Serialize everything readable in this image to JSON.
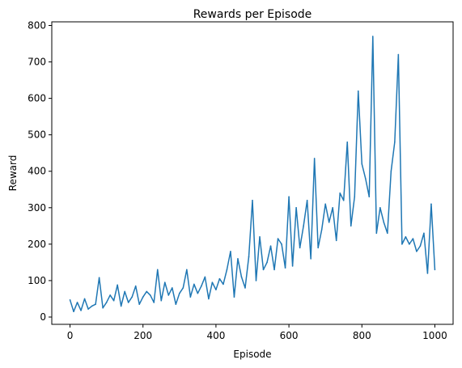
{
  "chart_data": {
    "type": "line",
    "title": "Rewards per Episode",
    "xlabel": "Episode",
    "ylabel": "Reward",
    "xlim": [
      -50,
      1050
    ],
    "ylim": [
      -20,
      810
    ],
    "xticks": [
      0,
      200,
      400,
      600,
      800,
      1000
    ],
    "yticks": [
      0,
      100,
      200,
      300,
      400,
      500,
      600,
      700,
      800
    ],
    "grid": false,
    "legend": "none",
    "series": [
      {
        "color": "#1f77b4",
        "x": [
          0,
          10,
          20,
          30,
          40,
          50,
          60,
          70,
          80,
          90,
          100,
          110,
          120,
          130,
          140,
          150,
          160,
          170,
          180,
          190,
          200,
          210,
          220,
          230,
          240,
          250,
          260,
          270,
          280,
          290,
          300,
          310,
          320,
          330,
          340,
          350,
          360,
          370,
          380,
          390,
          400,
          410,
          420,
          430,
          440,
          450,
          460,
          470,
          480,
          490,
          500,
          510,
          520,
          530,
          540,
          550,
          560,
          570,
          580,
          590,
          600,
          610,
          620,
          630,
          640,
          650,
          660,
          670,
          680,
          690,
          700,
          710,
          720,
          730,
          740,
          750,
          760,
          770,
          780,
          790,
          800,
          810,
          820,
          830,
          840,
          850,
          860,
          870,
          880,
          890,
          900,
          910,
          920,
          930,
          940,
          950,
          960,
          970,
          980,
          990,
          1000
        ],
        "values": [
          47,
          15,
          40,
          18,
          50,
          22,
          30,
          35,
          108,
          25,
          40,
          60,
          45,
          88,
          30,
          70,
          40,
          55,
          85,
          35,
          55,
          70,
          60,
          40,
          130,
          45,
          95,
          60,
          80,
          35,
          65,
          80,
          130,
          55,
          90,
          65,
          85,
          110,
          50,
          95,
          75,
          105,
          90,
          130,
          180,
          55,
          160,
          110,
          80,
          165,
          320,
          100,
          220,
          130,
          150,
          195,
          130,
          215,
          200,
          135,
          330,
          140,
          300,
          190,
          250,
          320,
          160,
          435,
          190,
          240,
          310,
          260,
          300,
          210,
          340,
          320,
          480,
          250,
          330,
          620,
          420,
          380,
          330,
          770,
          230,
          300,
          260,
          230,
          400,
          480,
          720,
          200,
          220,
          200,
          215,
          180,
          195,
          230,
          120,
          310,
          130
        ]
      }
    ]
  }
}
